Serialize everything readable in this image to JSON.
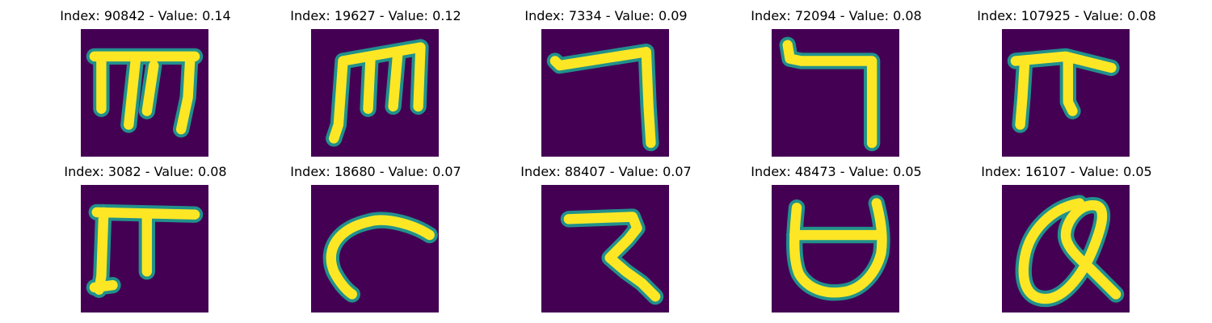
{
  "colors": {
    "background": "#440154",
    "stroke": "#fde725",
    "edge": "#21918c"
  },
  "panels": [
    {
      "title": "Index: 90842 - Value: 0.14",
      "glyph": "m-glyph"
    },
    {
      "title": "Index: 19627 - Value: 0.12",
      "glyph": "m-glyph-bold"
    },
    {
      "title": "Index: 7334 - Value: 0.09",
      "glyph": "corner-glyph"
    },
    {
      "title": "Index: 72094 - Value: 0.08",
      "glyph": "corner-glyph-2"
    },
    {
      "title": "Index: 107925 - Value: 0.08",
      "glyph": "pi-glyph"
    },
    {
      "title": "Index: 3082 - Value: 0.08",
      "glyph": "pi-glyph-2"
    },
    {
      "title": "Index: 18680 - Value: 0.07",
      "glyph": "hook-glyph"
    },
    {
      "title": "Index: 88407 - Value: 0.07",
      "glyph": "z-glyph"
    },
    {
      "title": "Index: 48473 - Value: 0.05",
      "glyph": "cup-glyph"
    },
    {
      "title": "Index: 16107 - Value: 0.05",
      "glyph": "loop-glyph"
    }
  ]
}
